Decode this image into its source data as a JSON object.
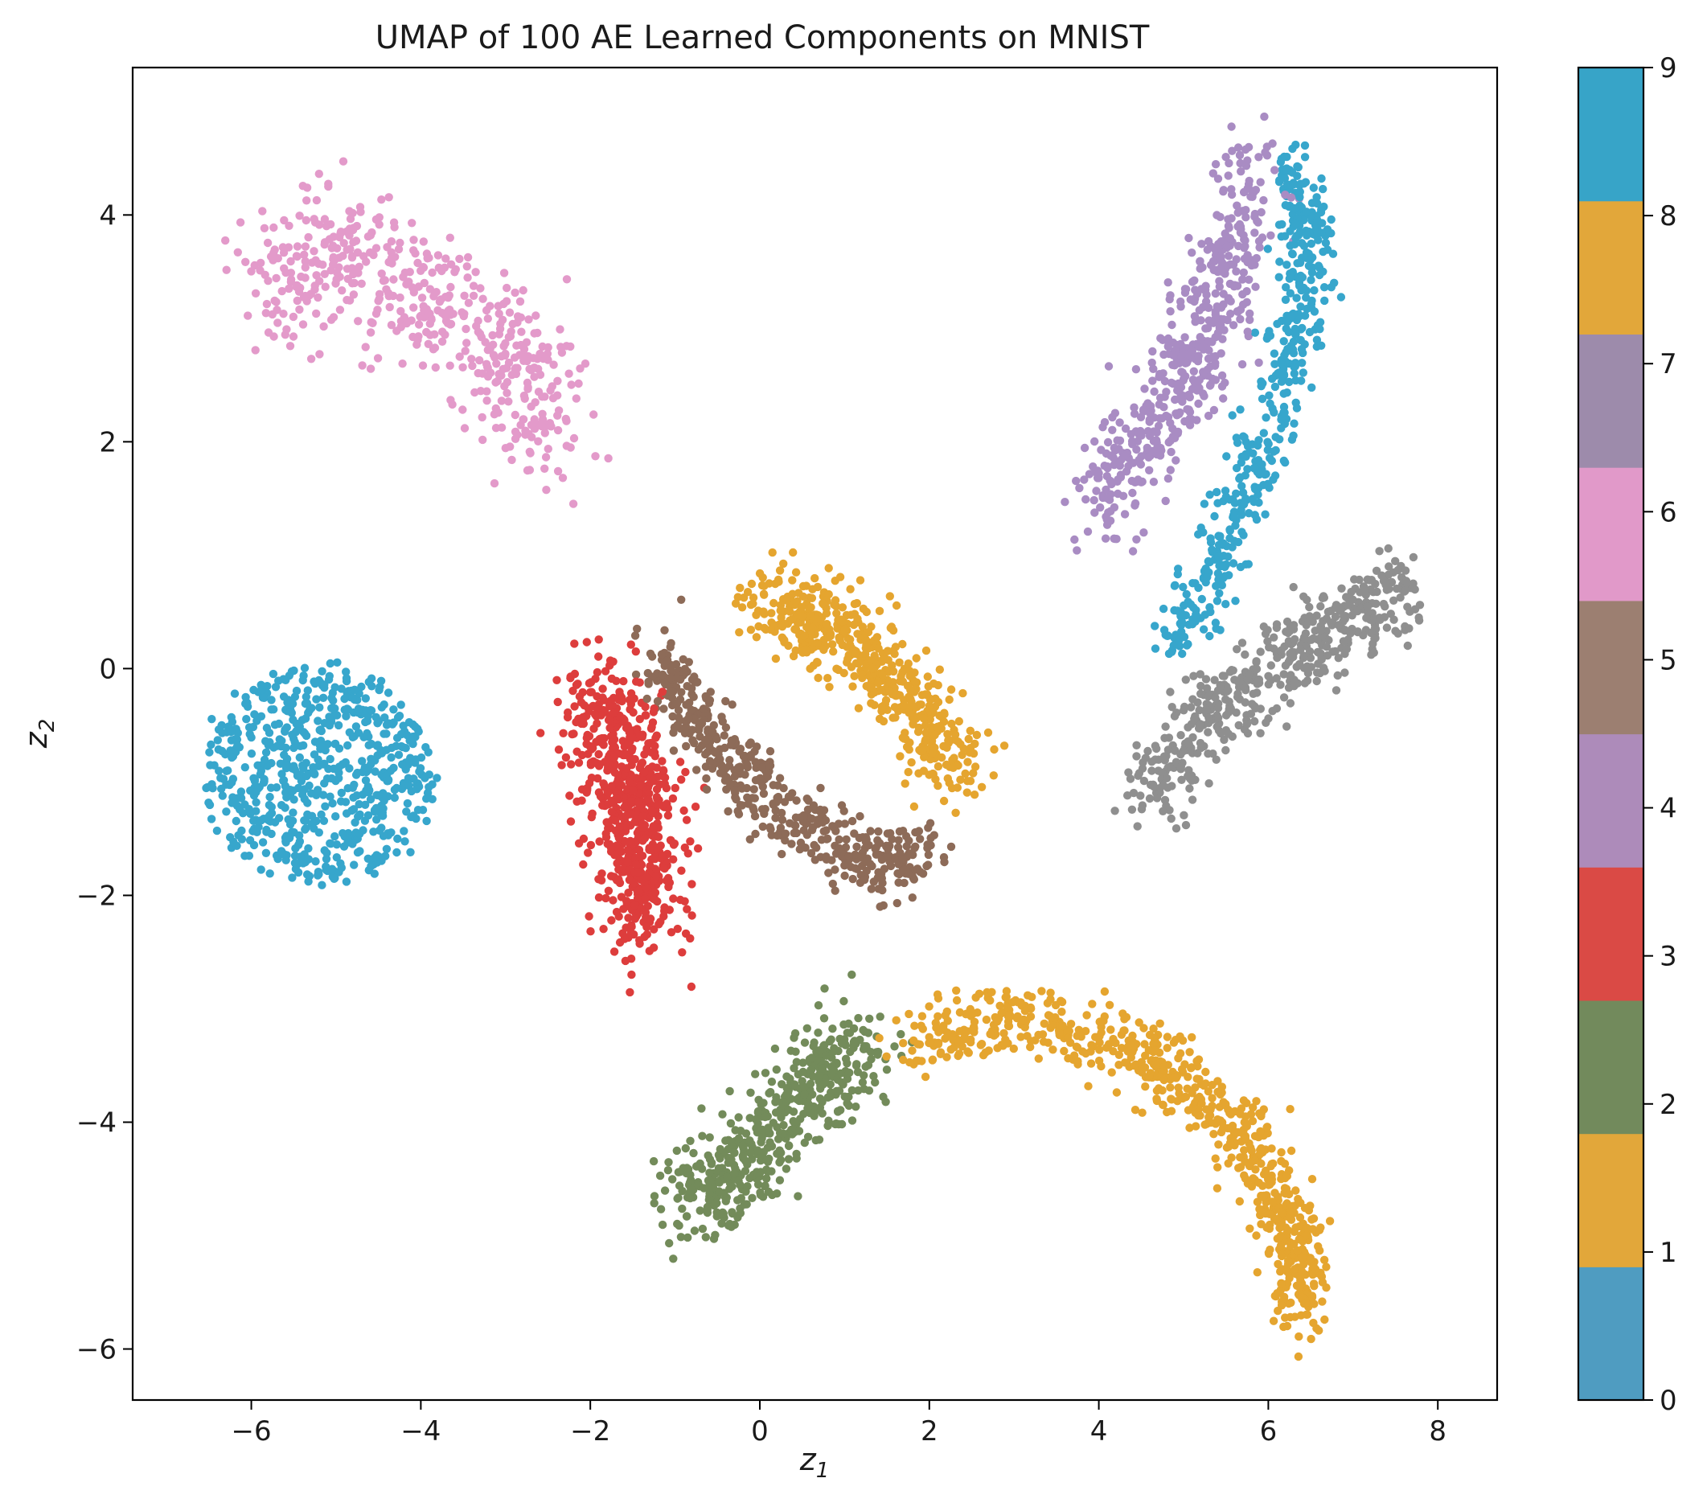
{
  "chart_data": {
    "type": "scatter",
    "title": "UMAP of 100 AE Learned Components on MNIST",
    "xlabel": "z",
    "xlabel_sub": "1",
    "ylabel": "z",
    "ylabel_sub": "2",
    "xlim": [
      -7.4,
      8.7
    ],
    "ylim": [
      -6.45,
      5.3
    ],
    "xticks": [
      -6,
      -4,
      -2,
      0,
      2,
      4,
      6,
      8
    ],
    "yticks": [
      -6,
      -4,
      -2,
      0,
      2,
      4
    ],
    "colorbar": {
      "ticks": [
        0,
        1,
        2,
        3,
        4,
        5,
        6,
        7,
        8,
        9
      ],
      "range": [
        0,
        9
      ],
      "colors": [
        "#4f9cc1",
        "#e2a73a",
        "#728a5c",
        "#da4a45",
        "#ad8bba",
        "#9c7f71",
        "#e199c9",
        "#9d8bab",
        "#e2a73a",
        "#37a4c8"
      ]
    },
    "class_colors": {
      "0": "#37a6cc",
      "1": "#e5a52f",
      "2": "#738b5a",
      "3": "#dd3d3c",
      "4": "#a98cc3",
      "5": "#8d6b58",
      "6": "#e39aca",
      "7": "#8f8f8f",
      "8": "#e5a52f",
      "9": "#37a6cc"
    },
    "series": [
      {
        "label": 9,
        "clusters": [
          {
            "shape": "ellipse",
            "cx": -5.2,
            "cy": -0.95,
            "rx": 1.35,
            "ry": 0.95,
            "n": 650
          }
        ]
      },
      {
        "label": 6,
        "clusters": [
          {
            "shape": "band",
            "points": [
              [
                -5.9,
                3.4
              ],
              [
                -5.0,
                3.7
              ],
              [
                -4.0,
                3.3
              ],
              [
                -3.0,
                2.8
              ],
              [
                -2.4,
                2.1
              ]
            ],
            "spread": 0.55,
            "n": 520
          }
        ]
      },
      {
        "label": 3,
        "clusters": [
          {
            "shape": "band",
            "points": [
              [
                -1.9,
                -0.2
              ],
              [
                -1.6,
                -0.9
              ],
              [
                -1.4,
                -1.5
              ],
              [
                -1.4,
                -2.2
              ]
            ],
            "spread": 0.5,
            "n": 650
          }
        ]
      },
      {
        "label": 5,
        "clusters": [
          {
            "shape": "band",
            "points": [
              [
                -1.2,
                0.1
              ],
              [
                -0.6,
                -0.6
              ],
              [
                0.3,
                -1.3
              ],
              [
                1.2,
                -1.7
              ],
              [
                2.0,
                -1.6
              ]
            ],
            "spread": 0.28,
            "n": 480
          }
        ]
      },
      {
        "label": 8,
        "clusters": [
          {
            "shape": "band",
            "points": [
              [
                0.0,
                0.6
              ],
              [
                0.9,
                0.4
              ],
              [
                1.7,
                -0.2
              ],
              [
                2.4,
                -0.9
              ]
            ],
            "spread": 0.35,
            "n": 520
          }
        ]
      },
      {
        "label": 2,
        "clusters": [
          {
            "shape": "band",
            "points": [
              [
                -0.9,
                -4.7
              ],
              [
                -0.2,
                -4.4
              ],
              [
                0.6,
                -3.7
              ],
              [
                1.2,
                -3.3
              ]
            ],
            "spread": 0.4,
            "n": 500
          }
        ]
      },
      {
        "label": 1,
        "clusters": [
          {
            "shape": "band",
            "points": [
              [
                1.8,
                -3.3
              ],
              [
                3.2,
                -3.1
              ],
              [
                4.8,
                -3.5
              ],
              [
                5.8,
                -4.2
              ],
              [
                6.3,
                -5.0
              ],
              [
                6.4,
                -5.7
              ]
            ],
            "spread": 0.3,
            "n": 750
          }
        ]
      },
      {
        "label": 4,
        "clusters": [
          {
            "shape": "band",
            "points": [
              [
                4.0,
                1.4
              ],
              [
                4.9,
                2.4
              ],
              [
                5.5,
                3.4
              ],
              [
                5.8,
                4.5
              ]
            ],
            "spread": 0.4,
            "n": 500
          }
        ]
      },
      {
        "label": 0,
        "clusters": [
          {
            "shape": "band",
            "points": [
              [
                4.9,
                0.2
              ],
              [
                5.6,
                1.3
              ],
              [
                6.2,
                2.6
              ],
              [
                6.5,
                3.6
              ],
              [
                6.3,
                4.5
              ]
            ],
            "spread": 0.28,
            "n": 480
          }
        ]
      },
      {
        "label": 7,
        "clusters": [
          {
            "shape": "band",
            "points": [
              [
                4.6,
                -1.1
              ],
              [
                5.5,
                -0.3
              ],
              [
                6.6,
                0.3
              ],
              [
                7.6,
                0.7
              ]
            ],
            "spread": 0.35,
            "n": 500
          }
        ]
      }
    ]
  }
}
